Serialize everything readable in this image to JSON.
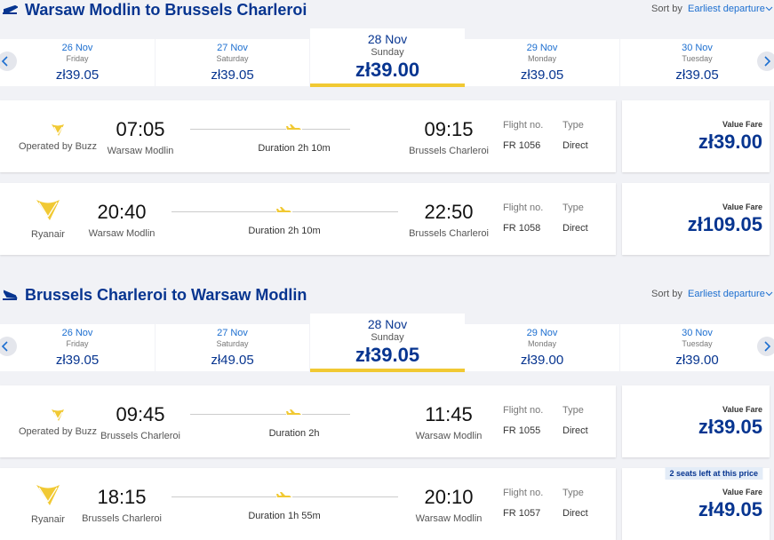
{
  "sections": [
    {
      "title": "Warsaw Modlin to Brussels Charleroi",
      "sort_label": "Sort by",
      "sort_value": "Earliest departure",
      "selected_date": 2,
      "dates": [
        {
          "date": "26 Nov",
          "day": "Friday",
          "price": "zł39.05"
        },
        {
          "date": "27 Nov",
          "day": "Saturday",
          "price": "zł39.05"
        },
        {
          "date": "28 Nov",
          "day": "Sunday",
          "price": "zł39.00"
        },
        {
          "date": "29 Nov",
          "day": "Monday",
          "price": "zł39.05"
        },
        {
          "date": "30 Nov",
          "day": "Tuesday",
          "price": "zł39.05"
        }
      ],
      "flights": [
        {
          "operator": "Operated by Buzz",
          "dep_time": "07:05",
          "dep_airport": "Warsaw Modlin",
          "duration": "Duration 2h 10m",
          "arr_time": "09:15",
          "arr_airport": "Brussels Charleroi",
          "flight_no_label": "Flight no.",
          "flight_no": "FR 1056",
          "type_label": "Type",
          "type": "Direct",
          "fare_label": "Value Fare",
          "price": "zł39.00"
        },
        {
          "operator": "Ryanair",
          "dep_time": "20:40",
          "dep_airport": "Warsaw Modlin",
          "duration": "Duration 2h 10m",
          "arr_time": "22:50",
          "arr_airport": "Brussels Charleroi",
          "flight_no_label": "Flight no.",
          "flight_no": "FR 1058",
          "type_label": "Type",
          "type": "Direct",
          "fare_label": "Value Fare",
          "price": "zł109.05"
        }
      ]
    },
    {
      "title": "Brussels Charleroi to Warsaw Modlin",
      "sort_label": "Sort by",
      "sort_value": "Earliest departure",
      "selected_date": 2,
      "dates": [
        {
          "date": "26 Nov",
          "day": "Friday",
          "price": "zł39.05"
        },
        {
          "date": "27 Nov",
          "day": "Saturday",
          "price": "zł49.05"
        },
        {
          "date": "28 Nov",
          "day": "Sunday",
          "price": "zł39.05"
        },
        {
          "date": "29 Nov",
          "day": "Monday",
          "price": "zł39.00"
        },
        {
          "date": "30 Nov",
          "day": "Tuesday",
          "price": "zł39.00"
        }
      ],
      "flights": [
        {
          "operator": "Operated by Buzz",
          "dep_time": "09:45",
          "dep_airport": "Brussels Charleroi",
          "duration": "Duration 2h",
          "arr_time": "11:45",
          "arr_airport": "Warsaw Modlin",
          "flight_no_label": "Flight no.",
          "flight_no": "FR 1055",
          "type_label": "Type",
          "type": "Direct",
          "fare_label": "Value Fare",
          "price": "zł39.05"
        },
        {
          "operator": "Ryanair",
          "dep_time": "18:15",
          "dep_airport": "Brussels Charleroi",
          "duration": "Duration 1h 55m",
          "arr_time": "20:10",
          "arr_airport": "Warsaw Modlin",
          "flight_no_label": "Flight no.",
          "flight_no": "FR 1057",
          "type_label": "Type",
          "type": "Direct",
          "notice": "2 seats left at this price",
          "fare_label": "Value Fare",
          "price": "zł49.05"
        }
      ]
    }
  ]
}
